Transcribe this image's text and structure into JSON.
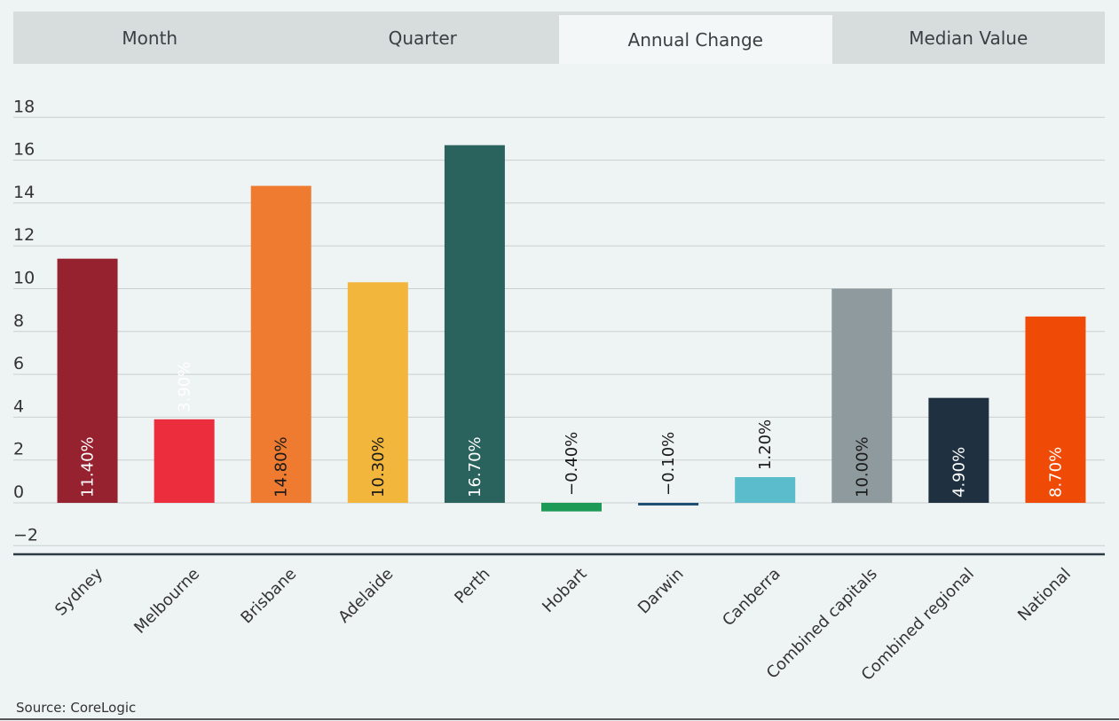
{
  "tabs": [
    {
      "label": "Month",
      "active": false
    },
    {
      "label": "Quarter",
      "active": false
    },
    {
      "label": "Annual Change",
      "active": true
    },
    {
      "label": "Median Value",
      "active": false
    }
  ],
  "source": "Source: CoreLogic",
  "chart_data": {
    "type": "bar",
    "categories": [
      "Sydney",
      "Melbourne",
      "Brisbane",
      "Adelaide",
      "Perth",
      "Hobart",
      "Darwin",
      "Canberra",
      "Combined capitals",
      "Combined regional",
      "National"
    ],
    "values": [
      11.4,
      3.9,
      14.8,
      10.3,
      16.7,
      -0.4,
      -0.1,
      1.2,
      10.0,
      4.9,
      8.7
    ],
    "labels": [
      "11.40%",
      "3.90%",
      "14.80%",
      "10.30%",
      "16.70%",
      "−0.40%",
      "−0.10%",
      "1.20%",
      "10.00%",
      "4.90%",
      "8.70%"
    ],
    "colors": [
      "#962230",
      "#ec2d3d",
      "#ef7b30",
      "#f2b63d",
      "#2a625e",
      "#1d9a56",
      "#1d4e73",
      "#5bbccb",
      "#8f9a9e",
      "#1f3140",
      "#ef4a06"
    ],
    "label_colors": [
      "#ffffff",
      "#ffffff",
      "#1a1a1a",
      "#1a1a1a",
      "#ffffff",
      "#1a1a1a",
      "#1a1a1a",
      "#1a1a1a",
      "#1a1a1a",
      "#ffffff",
      "#ffffff"
    ],
    "yticks": [
      -2,
      0,
      2,
      4,
      6,
      8,
      10,
      12,
      14,
      16,
      18
    ],
    "ylim": [
      -2,
      18
    ],
    "grid": true
  }
}
